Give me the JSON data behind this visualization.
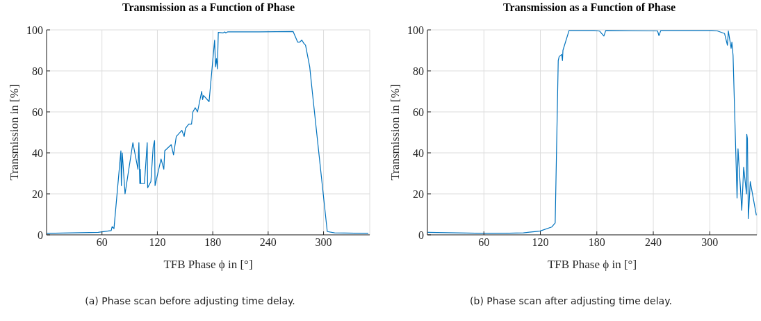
{
  "chart_data": [
    {
      "type": "line",
      "title": "Transmission as a Function of Phase",
      "xlabel": "TFB Phase ϕ in [°]",
      "ylabel": "Transmission in [%]",
      "annotations": [
        "(a) Phase scan before adjusting time delay."
      ],
      "xlim": [
        0,
        350
      ],
      "xticks": [
        60,
        120,
        180,
        240,
        300
      ],
      "ylim": [
        0,
        100
      ],
      "yticks": [
        0,
        20,
        40,
        60,
        80,
        100
      ],
      "grid": true,
      "series": [
        {
          "color": "#0072bd",
          "x": [
            0,
            56,
            70,
            71,
            73,
            80.5,
            81,
            82,
            85,
            93.5,
            99,
            100,
            101,
            101.5,
            102,
            106,
            109,
            109.5,
            113,
            115.5,
            117,
            117.5,
            124,
            127,
            128,
            135,
            137.5,
            140.5,
            146.5,
            149,
            150.5,
            154,
            157,
            158.5,
            161,
            163.5,
            168,
            169,
            170,
            176,
            182,
            183,
            184,
            185,
            186,
            191,
            193,
            194,
            196,
            230,
            267,
            272,
            274,
            276.5,
            278.5,
            280.5,
            285,
            288,
            304,
            312,
            348.5
          ],
          "values": [
            0.7,
            1.2,
            2.1,
            4,
            3,
            41,
            24,
            40,
            20,
            45,
            32,
            45,
            25,
            32,
            25,
            25,
            45,
            23,
            26,
            43,
            46,
            24,
            37,
            32,
            41,
            44,
            39,
            48,
            51,
            48,
            52,
            54,
            54,
            60,
            62,
            60,
            70,
            66,
            68,
            65,
            95,
            82,
            86,
            81,
            98.8,
            98.5,
            99,
            98.5,
            99,
            99,
            99.2,
            94,
            94,
            95,
            93.5,
            92.5,
            82,
            69,
            1.6,
            1,
            0.7
          ]
        }
      ]
    },
    {
      "type": "line",
      "title": "Transmission as a Function of Phase",
      "xlabel": "TFB Phase ϕ in [°]",
      "ylabel": "Transmission in [%]",
      "annotations": [
        "(b) Phase scan after adjusting time delay."
      ],
      "xlim": [
        0,
        350
      ],
      "xticks": [
        60,
        120,
        180,
        240,
        300
      ],
      "ylim": [
        0,
        100
      ],
      "yticks": [
        0,
        20,
        40,
        60,
        80,
        100
      ],
      "grid": true,
      "series": [
        {
          "color": "#0072bd",
          "x": [
            0,
            61,
            87,
            102,
            119.5,
            132,
            135.75,
            139,
            140,
            142.7,
            143.5,
            144,
            150.5,
            177,
            183,
            187.5,
            189.5,
            244.5,
            246,
            248,
            302,
            308,
            315.75,
            318.75,
            319.75,
            322.7,
            323.5,
            324.75,
            329,
            330,
            334,
            336,
            339,
            339.3,
            340,
            341,
            343,
            349.5
          ],
          "values": [
            1.2,
            0.7,
            0.8,
            1.0,
            1.8,
            3.8,
            5.8,
            85,
            87,
            88,
            85,
            90,
            99.7,
            99.7,
            99.4,
            97,
            99.7,
            99.5,
            97.2,
            99.7,
            99.7,
            99.5,
            98.2,
            92.5,
            99.5,
            91,
            94,
            87.5,
            18,
            42,
            12,
            33,
            20,
            49,
            47,
            8,
            26,
            9.5
          ]
        }
      ]
    }
  ]
}
